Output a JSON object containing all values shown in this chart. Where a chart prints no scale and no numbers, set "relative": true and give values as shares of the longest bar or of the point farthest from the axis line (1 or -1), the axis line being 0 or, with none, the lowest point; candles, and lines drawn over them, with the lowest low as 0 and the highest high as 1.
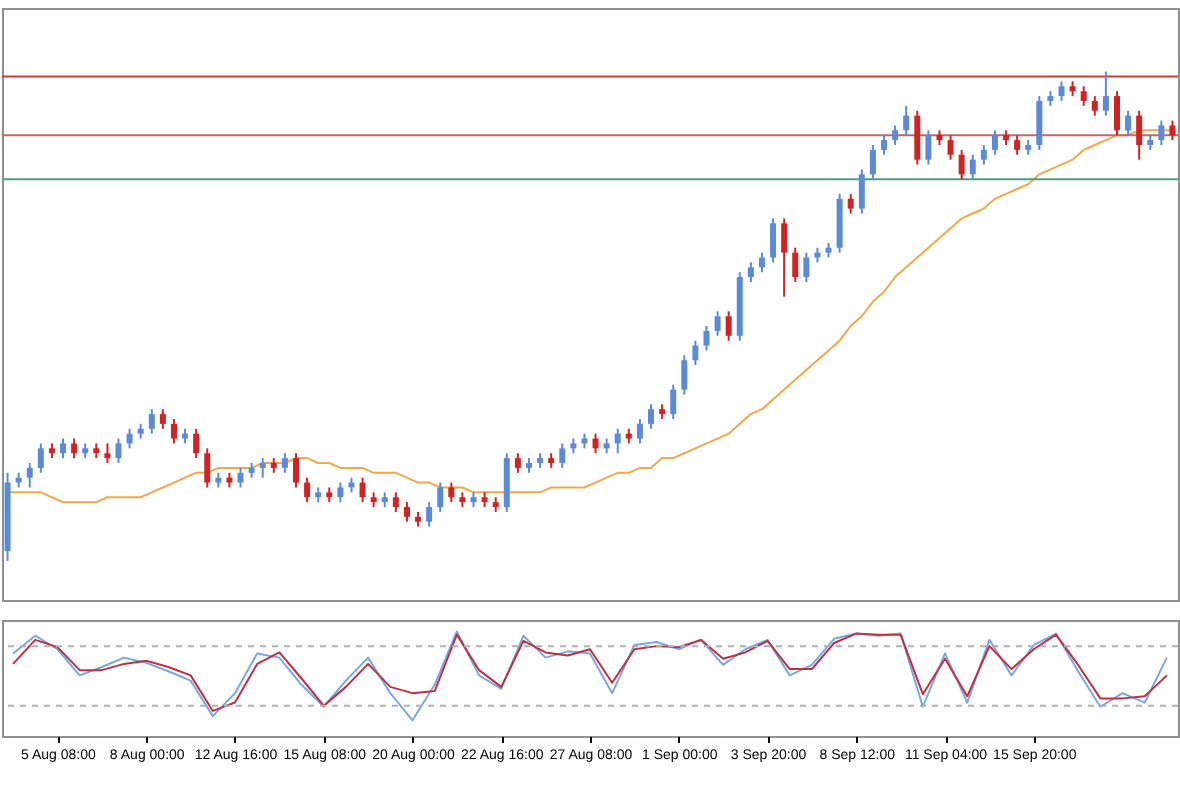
{
  "chart_data": [
    {
      "type": "candlestick",
      "relative": true,
      "tick_labels": false,
      "categories": [
        null,
        null,
        null,
        null,
        null,
        null,
        null,
        null,
        null,
        null,
        null,
        null,
        null,
        null,
        null,
        null,
        null,
        null,
        null,
        null,
        null,
        null,
        null,
        null,
        null,
        null,
        null,
        null,
        null,
        null,
        null,
        null,
        null,
        null,
        null,
        null,
        null,
        null,
        null,
        null,
        null,
        null,
        null,
        null,
        null,
        null,
        null,
        null,
        null,
        null,
        null,
        null,
        null,
        null,
        null,
        null,
        null,
        null,
        null,
        null,
        null,
        null,
        null,
        null,
        null,
        null,
        null,
        null,
        null,
        null,
        null,
        null,
        null,
        null,
        null,
        null,
        null,
        null,
        null,
        null,
        null,
        null,
        null,
        null,
        null,
        null,
        null,
        null,
        null,
        null,
        null,
        null,
        null,
        null,
        null,
        null,
        null,
        null,
        null,
        null,
        null,
        null,
        null,
        null,
        null,
        null
      ],
      "ohlc": [
        [
          0.02,
          0.18,
          0,
          0.16
        ],
        [
          0.16,
          0.18,
          0.15,
          0.17
        ],
        [
          0.17,
          0.2,
          0.15,
          0.19
        ],
        [
          0.19,
          0.24,
          0.18,
          0.23
        ],
        [
          0.23,
          0.24,
          0.21,
          0.22
        ],
        [
          0.22,
          0.25,
          0.21,
          0.24
        ],
        [
          0.24,
          0.25,
          0.21,
          0.22
        ],
        [
          0.22,
          0.24,
          0.21,
          0.23
        ],
        [
          0.23,
          0.24,
          0.21,
          0.22
        ],
        [
          0.22,
          0.24,
          0.2,
          0.21
        ],
        [
          0.21,
          0.25,
          0.2,
          0.24
        ],
        [
          0.24,
          0.27,
          0.23,
          0.26
        ],
        [
          0.26,
          0.28,
          0.25,
          0.27
        ],
        [
          0.27,
          0.31,
          0.26,
          0.3
        ],
        [
          0.3,
          0.31,
          0.27,
          0.28
        ],
        [
          0.28,
          0.29,
          0.24,
          0.25
        ],
        [
          0.25,
          0.27,
          0.24,
          0.26
        ],
        [
          0.26,
          0.27,
          0.21,
          0.22
        ],
        [
          0.22,
          0.23,
          0.15,
          0.16
        ],
        [
          0.16,
          0.18,
          0.15,
          0.17
        ],
        [
          0.17,
          0.18,
          0.15,
          0.16
        ],
        [
          0.16,
          0.19,
          0.15,
          0.18
        ],
        [
          0.18,
          0.2,
          0.17,
          0.19
        ],
        [
          0.19,
          0.21,
          0.17,
          0.2
        ],
        [
          0.2,
          0.21,
          0.18,
          0.19
        ],
        [
          0.19,
          0.22,
          0.18,
          0.21
        ],
        [
          0.21,
          0.22,
          0.15,
          0.16
        ],
        [
          0.16,
          0.17,
          0.12,
          0.13
        ],
        [
          0.13,
          0.15,
          0.12,
          0.14
        ],
        [
          0.14,
          0.15,
          0.12,
          0.13
        ],
        [
          0.13,
          0.16,
          0.12,
          0.15
        ],
        [
          0.15,
          0.17,
          0.14,
          0.16
        ],
        [
          0.16,
          0.17,
          0.12,
          0.13
        ],
        [
          0.13,
          0.14,
          0.11,
          0.12
        ],
        [
          0.12,
          0.14,
          0.11,
          0.13
        ],
        [
          0.13,
          0.14,
          0.1,
          0.11
        ],
        [
          0.11,
          0.12,
          0.08,
          0.09
        ],
        [
          0.09,
          0.1,
          0.07,
          0.08
        ],
        [
          0.08,
          0.12,
          0.07,
          0.11
        ],
        [
          0.11,
          0.16,
          0.1,
          0.15
        ],
        [
          0.15,
          0.16,
          0.12,
          0.13
        ],
        [
          0.13,
          0.14,
          0.11,
          0.12
        ],
        [
          0.12,
          0.14,
          0.11,
          0.13
        ],
        [
          0.13,
          0.14,
          0.11,
          0.12
        ],
        [
          0.12,
          0.13,
          0.1,
          0.11
        ],
        [
          0.11,
          0.22,
          0.1,
          0.21
        ],
        [
          0.21,
          0.22,
          0.18,
          0.19
        ],
        [
          0.19,
          0.21,
          0.18,
          0.2
        ],
        [
          0.2,
          0.22,
          0.19,
          0.21
        ],
        [
          0.21,
          0.22,
          0.19,
          0.2
        ],
        [
          0.2,
          0.24,
          0.19,
          0.23
        ],
        [
          0.23,
          0.25,
          0.22,
          0.24
        ],
        [
          0.24,
          0.26,
          0.23,
          0.25
        ],
        [
          0.25,
          0.26,
          0.22,
          0.23
        ],
        [
          0.23,
          0.25,
          0.22,
          0.24
        ],
        [
          0.24,
          0.27,
          0.22,
          0.26
        ],
        [
          0.26,
          0.27,
          0.24,
          0.25
        ],
        [
          0.25,
          0.29,
          0.24,
          0.28
        ],
        [
          0.28,
          0.32,
          0.27,
          0.31
        ],
        [
          0.31,
          0.32,
          0.29,
          0.3
        ],
        [
          0.3,
          0.36,
          0.29,
          0.35
        ],
        [
          0.35,
          0.42,
          0.34,
          0.41
        ],
        [
          0.41,
          0.45,
          0.4,
          0.44
        ],
        [
          0.44,
          0.48,
          0.43,
          0.47
        ],
        [
          0.47,
          0.51,
          0.46,
          0.5
        ],
        [
          0.5,
          0.51,
          0.45,
          0.46
        ],
        [
          0.46,
          0.59,
          0.45,
          0.58
        ],
        [
          0.58,
          0.61,
          0.57,
          0.6
        ],
        [
          0.6,
          0.63,
          0.59,
          0.62
        ],
        [
          0.62,
          0.7,
          0.61,
          0.69
        ],
        [
          0.69,
          0.7,
          0.54,
          0.63
        ],
        [
          0.63,
          0.64,
          0.57,
          0.58
        ],
        [
          0.58,
          0.63,
          0.57,
          0.62
        ],
        [
          0.62,
          0.64,
          0.61,
          0.63
        ],
        [
          0.63,
          0.65,
          0.62,
          0.64
        ],
        [
          0.64,
          0.75,
          0.63,
          0.74
        ],
        [
          0.74,
          0.75,
          0.71,
          0.72
        ],
        [
          0.72,
          0.8,
          0.71,
          0.79
        ],
        [
          0.79,
          0.85,
          0.78,
          0.84
        ],
        [
          0.84,
          0.87,
          0.83,
          0.86
        ],
        [
          0.86,
          0.89,
          0.85,
          0.88
        ],
        [
          0.88,
          0.93,
          0.87,
          0.91
        ],
        [
          0.91,
          0.92,
          0.81,
          0.82
        ],
        [
          0.82,
          0.88,
          0.81,
          0.87
        ],
        [
          0.87,
          0.88,
          0.85,
          0.86
        ],
        [
          0.86,
          0.87,
          0.82,
          0.83
        ],
        [
          0.83,
          0.84,
          0.78,
          0.79
        ],
        [
          0.79,
          0.83,
          0.78,
          0.82
        ],
        [
          0.82,
          0.85,
          0.81,
          0.84
        ],
        [
          0.84,
          0.88,
          0.83,
          0.87
        ],
        [
          0.87,
          0.88,
          0.85,
          0.86
        ],
        [
          0.86,
          0.87,
          0.83,
          0.84
        ],
        [
          0.84,
          0.86,
          0.83,
          0.85
        ],
        [
          0.85,
          0.95,
          0.84,
          0.94
        ],
        [
          0.94,
          0.96,
          0.93,
          0.95
        ],
        [
          0.95,
          0.98,
          0.94,
          0.97
        ],
        [
          0.97,
          0.98,
          0.95,
          0.96
        ],
        [
          0.96,
          0.97,
          0.93,
          0.94
        ],
        [
          0.94,
          0.95,
          0.91,
          0.92
        ],
        [
          0.92,
          1,
          0.91,
          0.95
        ],
        [
          0.95,
          0.96,
          0.87,
          0.88
        ],
        [
          0.88,
          0.92,
          0.87,
          0.91
        ],
        [
          0.91,
          0.92,
          0.82,
          0.85
        ],
        [
          0.85,
          0.87,
          0.84,
          0.86
        ],
        [
          0.86,
          0.9,
          0.85,
          0.89
        ],
        [
          0.89,
          0.9,
          0.86,
          0.87
        ]
      ],
      "series": [
        {
          "type": "line",
          "color": "#f0a848",
          "values": [
            0.14,
            0.14,
            0.14,
            0.14,
            0.13,
            0.12,
            0.12,
            0.12,
            0.12,
            0.13,
            0.13,
            0.13,
            0.13,
            0.14,
            0.15,
            0.16,
            0.17,
            0.18,
            0.18,
            0.19,
            0.19,
            0.19,
            0.19,
            0.2,
            0.2,
            0.2,
            0.21,
            0.21,
            0.2,
            0.2,
            0.19,
            0.19,
            0.19,
            0.18,
            0.18,
            0.18,
            0.17,
            0.16,
            0.16,
            0.15,
            0.15,
            0.15,
            0.14,
            0.14,
            0.14,
            0.14,
            0.14,
            0.14,
            0.14,
            0.15,
            0.15,
            0.15,
            0.15,
            0.16,
            0.17,
            0.18,
            0.18,
            0.19,
            0.19,
            0.21,
            0.21,
            0.22,
            0.23,
            0.24,
            0.25,
            0.26,
            0.28,
            0.3,
            0.31,
            0.33,
            0.35,
            0.37,
            0.39,
            0.41,
            0.43,
            0.45,
            0.48,
            0.5,
            0.53,
            0.55,
            0.58,
            0.6,
            0.62,
            0.64,
            0.66,
            0.68,
            0.7,
            0.71,
            0.72,
            0.74,
            0.75,
            0.76,
            0.77,
            0.79,
            0.8,
            0.81,
            0.82,
            0.84,
            0.85,
            0.86,
            0.87,
            0.87,
            0.88,
            0.88,
            0.88,
            0.88
          ]
        }
      ],
      "ref_lines": [
        {
          "axis": "y",
          "value": 0.99,
          "color": "#d03838"
        },
        {
          "axis": "y",
          "value": 0.87,
          "color": "#c86468"
        },
        {
          "axis": "y",
          "value": 0.78,
          "color": "#4aa07a"
        }
      ]
    },
    {
      "type": "line",
      "relative": true,
      "tick_labels": "x",
      "categories": [
        null,
        null,
        "5 Aug 08:00",
        null,
        null,
        null,
        "8 Aug 00:00",
        null,
        null,
        null,
        "12 Aug 16:00",
        null,
        null,
        null,
        "15 Aug 08:00",
        null,
        null,
        null,
        "20 Aug 00:00",
        null,
        null,
        null,
        "22 Aug 16:00",
        null,
        null,
        null,
        "27 Aug 08:00",
        null,
        null,
        null,
        "1 Sep 00:00",
        null,
        null,
        null,
        "3 Sep 20:00",
        null,
        null,
        null,
        "8 Sep 12:00",
        null,
        null,
        null,
        "11 Sep 04:00",
        null,
        null,
        null,
        "15 Sep 20:00",
        null,
        null,
        null,
        null,
        null,
        null
      ],
      "series": [
        {
          "color": "#7aa8e0",
          "values": [
            0.79,
            0.96,
            0.83,
            0.58,
            0.66,
            0.75,
            0.7,
            0.62,
            0.53,
            0.19,
            0.41,
            0.79,
            0.75,
            0.49,
            0.28,
            0.53,
            0.75,
            0.41,
            0.15,
            0.49,
            1,
            0.58,
            0.45,
            0.96,
            0.75,
            0.81,
            0.79,
            0.41,
            0.87,
            0.9,
            0.83,
            0.92,
            0.68,
            0.83,
            0.92,
            0.58,
            0.68,
            0.93,
            0.98,
            0.96,
            0.98,
            0.28,
            0.79,
            0.32,
            0.92,
            0.58,
            0.87,
            0.98,
            0.62,
            0.28,
            0.41,
            0.32,
            0.75
          ]
        },
        {
          "color": "#c03040",
          "values": [
            0.69,
            0.92,
            0.85,
            0.63,
            0.63,
            0.69,
            0.72,
            0.66,
            0.58,
            0.24,
            0.32,
            0.69,
            0.8,
            0.55,
            0.29,
            0.47,
            0.69,
            0.47,
            0.41,
            0.43,
            0.97,
            0.63,
            0.47,
            0.91,
            0.8,
            0.77,
            0.83,
            0.51,
            0.83,
            0.86,
            0.85,
            0.92,
            0.74,
            0.8,
            0.91,
            0.64,
            0.64,
            0.89,
            0.98,
            0.97,
            0.97,
            0.4,
            0.74,
            0.38,
            0.86,
            0.64,
            0.83,
            0.97,
            0.68,
            0.36,
            0.36,
            0.38,
            0.58
          ]
        }
      ],
      "ref_lines": [
        {
          "axis": "y",
          "value": 0.86,
          "color": "#b0b0b0",
          "line_style": "dashed"
        },
        {
          "axis": "y",
          "value": 0.29,
          "color": "#b0b0b0",
          "line_style": "dashed"
        }
      ]
    }
  ]
}
